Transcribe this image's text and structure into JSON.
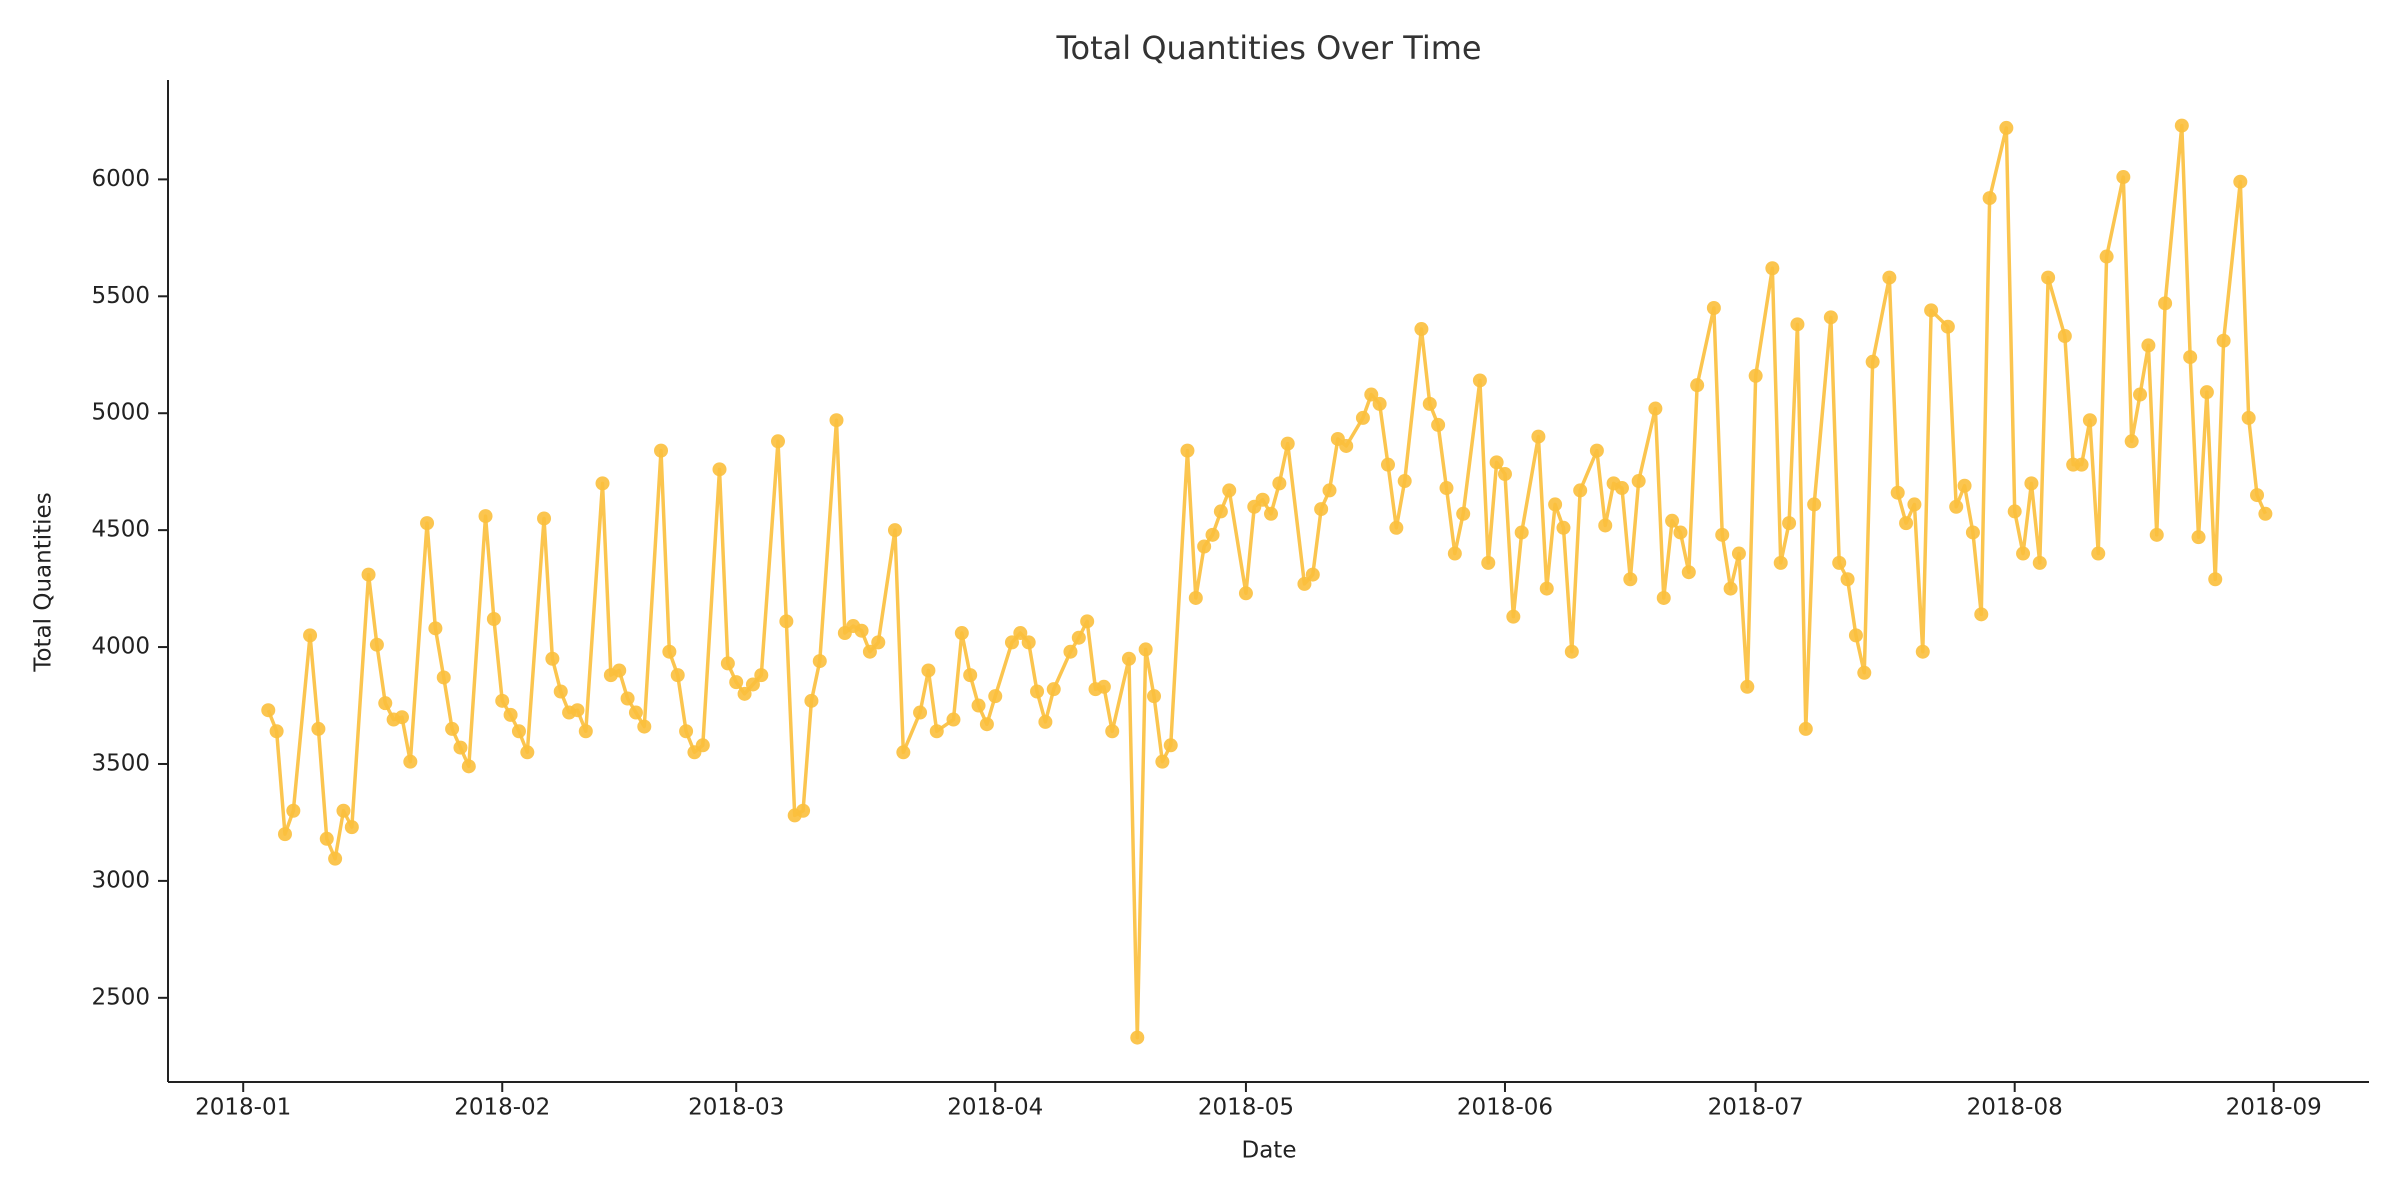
{
  "chart_data": {
    "type": "line",
    "title": "Total Quantities Over Time",
    "xlabel": "Date",
    "ylabel": "Total Quantities",
    "color": "#fbbf3c",
    "x": [
      3,
      4,
      5,
      6,
      8,
      9,
      10,
      11,
      12,
      13,
      15,
      16,
      17,
      18,
      19,
      20,
      22,
      23,
      24,
      25,
      26,
      27,
      29,
      30,
      31,
      32,
      33,
      34,
      36,
      37,
      38,
      39,
      40,
      41,
      43,
      44,
      45,
      46,
      47,
      48,
      50,
      51,
      52,
      53,
      54,
      55,
      57,
      58,
      59,
      60,
      61,
      62,
      64,
      65,
      66,
      67,
      68,
      69,
      71,
      72,
      73,
      74,
      75,
      76,
      78,
      79,
      81,
      82,
      83,
      85,
      86,
      87,
      88,
      89,
      90,
      92,
      93,
      94,
      95,
      96,
      97,
      99,
      100,
      101,
      102,
      103,
      104,
      106,
      107,
      108,
      109,
      110,
      111,
      113,
      114,
      115,
      116,
      117,
      118,
      120,
      121,
      122,
      123,
      124,
      125,
      127,
      128,
      129,
      130,
      131,
      132,
      134,
      135,
      136,
      137,
      138,
      139,
      141,
      142,
      143,
      144,
      145,
      146,
      148,
      149,
      150,
      151,
      152,
      153,
      155,
      156,
      157,
      158,
      159,
      160,
      162,
      163,
      164,
      165,
      166,
      167,
      169,
      170,
      171,
      172,
      173,
      174,
      176,
      177,
      178,
      179,
      180,
      181,
      183,
      184,
      185,
      186,
      187,
      188,
      190,
      191,
      192,
      193,
      194,
      195,
      197,
      198,
      199,
      200,
      201,
      202,
      204,
      205,
      206,
      207,
      208,
      209,
      211,
      212,
      213,
      214,
      215,
      216,
      218,
      219,
      220,
      221,
      222,
      223,
      225,
      226,
      227,
      228,
      229,
      230,
      232,
      233,
      234,
      235,
      236,
      237,
      239,
      240,
      241,
      242
    ],
    "values": [
      3730,
      3640,
      3200,
      3300,
      4050,
      3650,
      3180,
      3095,
      3300,
      3230,
      4310,
      4010,
      3760,
      3690,
      3700,
      3510,
      4530,
      4080,
      3870,
      3650,
      3570,
      3490,
      4560,
      4120,
      3770,
      3710,
      3640,
      3550,
      4550,
      3950,
      3810,
      3720,
      3730,
      3640,
      4700,
      3880,
      3900,
      3780,
      3720,
      3660,
      4840,
      3980,
      3880,
      3640,
      3550,
      3580,
      4760,
      3930,
      3850,
      3800,
      3840,
      3880,
      4880,
      4110,
      3280,
      3300,
      3770,
      3940,
      4970,
      4060,
      4090,
      4070,
      3980,
      4020,
      4500,
      3550,
      3720,
      3900,
      3640,
      3690,
      4060,
      3880,
      3750,
      3670,
      3790,
      4020,
      4060,
      4020,
      3810,
      3680,
      3820,
      3980,
      4040,
      4110,
      3820,
      3830,
      3640,
      3950,
      2330,
      3990,
      3790,
      3510,
      3580,
      4840,
      4210,
      4430,
      4480,
      4580,
      4670,
      4230,
      4600,
      4630,
      4570,
      4700,
      4870,
      4270,
      4310,
      4590,
      4670,
      4890,
      4860,
      4980,
      5080,
      5040,
      4780,
      4510,
      4710,
      5360,
      5040,
      4950,
      4680,
      4400,
      4570,
      5140,
      4360,
      4790,
      4740,
      4130,
      4490,
      4900,
      4250,
      4610,
      4510,
      3980,
      4670,
      4840,
      4520,
      4700,
      4680,
      4290,
      4710,
      5020,
      4210,
      4540,
      4490,
      4320,
      5120,
      5450,
      4480,
      4250,
      4400,
      3830,
      5160,
      5620,
      4360,
      4530,
      5380,
      3650,
      4610,
      5410,
      4360,
      4290,
      4050,
      3890,
      5220,
      5580,
      4660,
      4530,
      4610,
      3980,
      5440,
      5370,
      4600,
      4690,
      4490,
      4140,
      5920,
      6220,
      4580,
      4400,
      4700,
      4360,
      5580,
      5330,
      4780,
      4780,
      4970,
      4400,
      5670,
      6010,
      4880,
      5080,
      5290,
      4480,
      5470,
      6230,
      5240,
      4470,
      5090,
      4290,
      5310,
      5990,
      4980,
      4650,
      4570
    ],
    "xlim": [
      -9,
      254.4
    ],
    "xticks": [
      {
        "value": 0,
        "label": "2018-01"
      },
      {
        "value": 31,
        "label": "2018-02"
      },
      {
        "value": 59,
        "label": "2018-03"
      },
      {
        "value": 90,
        "label": "2018-04"
      },
      {
        "value": 120,
        "label": "2018-05"
      },
      {
        "value": 151,
        "label": "2018-06"
      },
      {
        "value": 181,
        "label": "2018-07"
      },
      {
        "value": 212,
        "label": "2018-08"
      },
      {
        "value": 243,
        "label": "2018-09"
      }
    ],
    "ylim": [
      2140,
      6425
    ],
    "yticks": [
      2500,
      3000,
      3500,
      4000,
      4500,
      5000,
      5500,
      6000
    ]
  }
}
